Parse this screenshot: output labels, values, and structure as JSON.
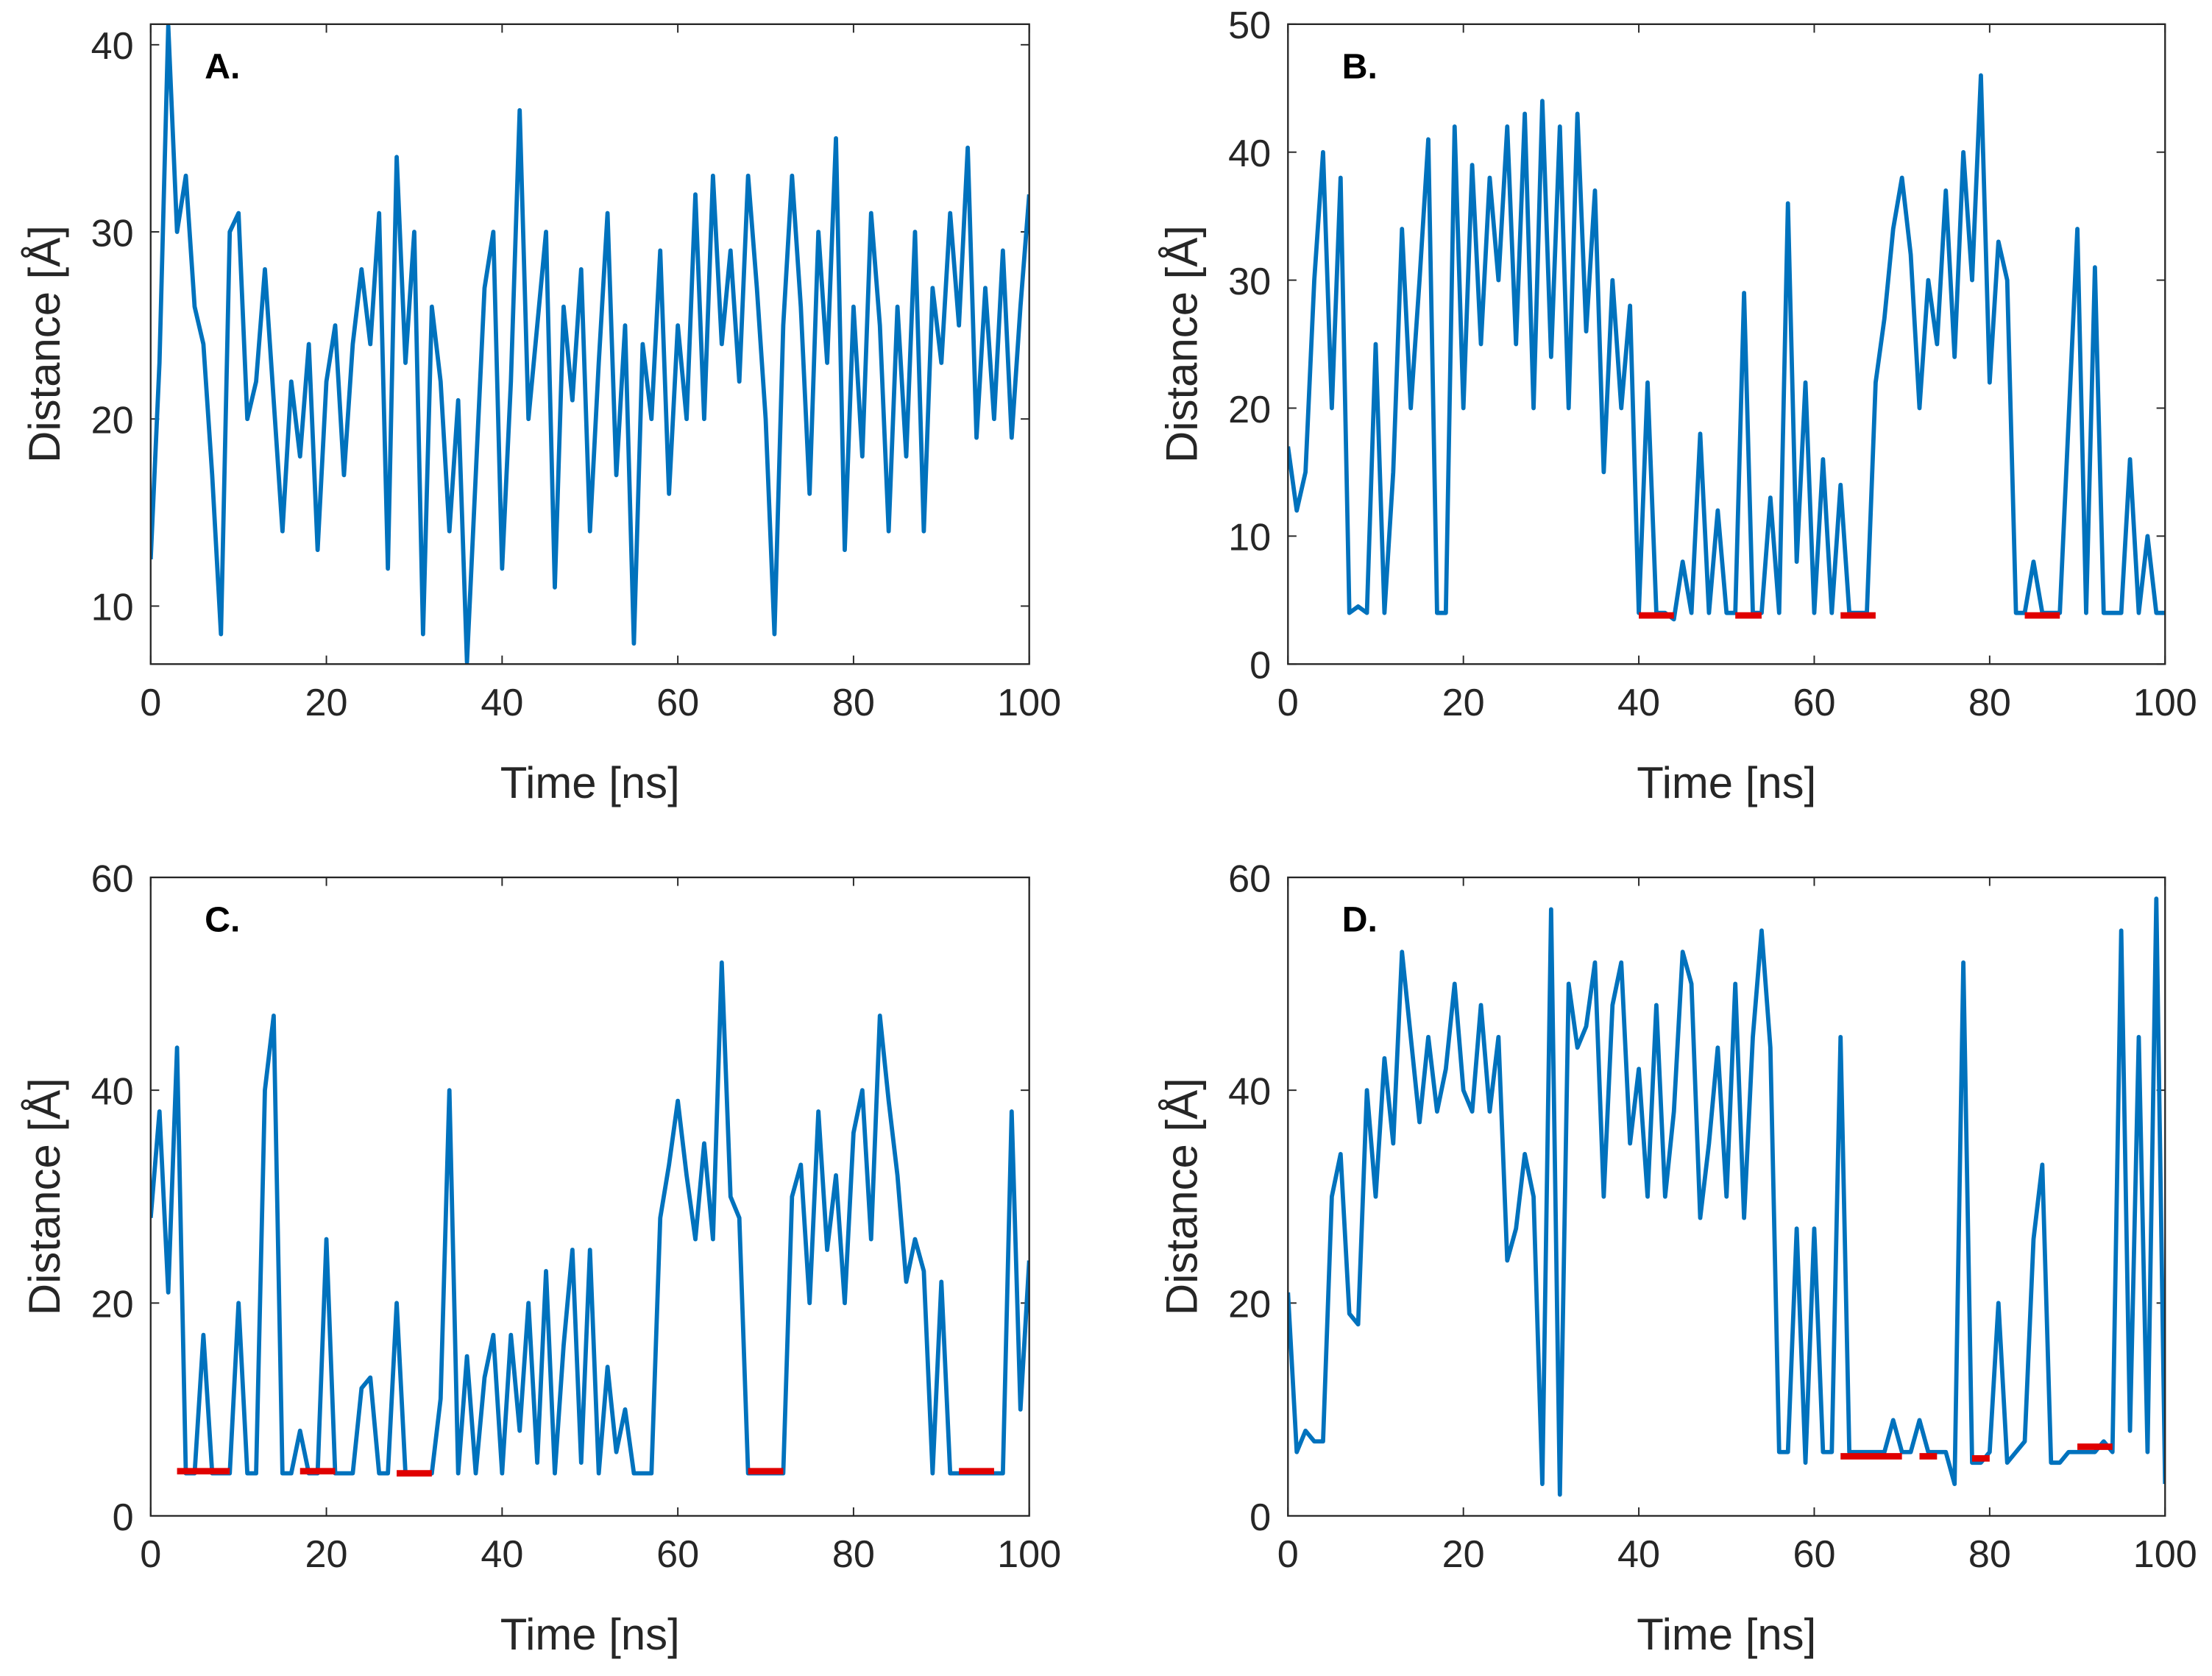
{
  "chart_data": [
    {
      "type": "line",
      "annotation": "A.",
      "xlabel": "Time [ns]",
      "ylabel": "Distance [Å]",
      "xlim": [
        0,
        100
      ],
      "xticks": [
        0,
        20,
        40,
        60,
        80,
        100
      ],
      "ylim": [
        6.9,
        41.1
      ],
      "yticks": [
        10,
        20,
        30,
        40
      ],
      "x": [
        0,
        1,
        2,
        3,
        4,
        5,
        6,
        7,
        8,
        9,
        10,
        11,
        12,
        13,
        14,
        15,
        16,
        17,
        18,
        19,
        20,
        21,
        22,
        23,
        24,
        25,
        26,
        27,
        28,
        29,
        30,
        31,
        32,
        33,
        34,
        35,
        36,
        37,
        38,
        39,
        40,
        41,
        42,
        43,
        44,
        45,
        46,
        47,
        48,
        49,
        50,
        51,
        52,
        53,
        54,
        55,
        56,
        57,
        58,
        59,
        60,
        61,
        62,
        63,
        64,
        65,
        66,
        67,
        68,
        69,
        70,
        71,
        72,
        73,
        74,
        75,
        76,
        77,
        78,
        79,
        80,
        81,
        82,
        83,
        84,
        85,
        86,
        87,
        88,
        89,
        90,
        91,
        92,
        93,
        94,
        95,
        96,
        97,
        98,
        99,
        100
      ],
      "series": [
        {
          "color": "#0072bd",
          "values": [
            12.5,
            23,
            41,
            30,
            33,
            26,
            24,
            17,
            8.5,
            30,
            31,
            20,
            22,
            28,
            21,
            14,
            22,
            18,
            24,
            13,
            22,
            25,
            17,
            24,
            28,
            24,
            31,
            12,
            34,
            23,
            30,
            8.5,
            26,
            22,
            14,
            21,
            7,
            17,
            27,
            30,
            12,
            22,
            36.5,
            20,
            25,
            30,
            11,
            26,
            21,
            28,
            14,
            23,
            31,
            17,
            25,
            8,
            24,
            20,
            29,
            16,
            25,
            20,
            32,
            20,
            33,
            24,
            29,
            22,
            33,
            27,
            20,
            8.5,
            25,
            33,
            26,
            16,
            30,
            23,
            35,
            13,
            26,
            18,
            31,
            25,
            14,
            26,
            18,
            30,
            14,
            27,
            23,
            31,
            25,
            34.5,
            19,
            27,
            20,
            29,
            19,
            26,
            32
          ]
        }
      ]
    },
    {
      "type": "line",
      "annotation": "B.",
      "xlabel": "Time [ns]",
      "ylabel": "Distance [Å]",
      "xlim": [
        0,
        100
      ],
      "xticks": [
        0,
        20,
        40,
        60,
        80,
        100
      ],
      "ylim": [
        0,
        50
      ],
      "yticks": [
        0,
        10,
        20,
        30,
        40,
        50
      ],
      "x": [
        0,
        1,
        2,
        3,
        4,
        5,
        6,
        7,
        8,
        9,
        10,
        11,
        12,
        13,
        14,
        15,
        16,
        17,
        18,
        19,
        20,
        21,
        22,
        23,
        24,
        25,
        26,
        27,
        28,
        29,
        30,
        31,
        32,
        33,
        34,
        35,
        36,
        37,
        38,
        39,
        40,
        41,
        42,
        43,
        44,
        45,
        46,
        47,
        48,
        49,
        50,
        51,
        52,
        53,
        54,
        55,
        56,
        57,
        58,
        59,
        60,
        61,
        62,
        63,
        64,
        65,
        66,
        67,
        68,
        69,
        70,
        71,
        72,
        73,
        74,
        75,
        76,
        77,
        78,
        79,
        80,
        81,
        82,
        83,
        84,
        85,
        86,
        87,
        88,
        89,
        90,
        91,
        92,
        93,
        94,
        95,
        96,
        97,
        98,
        99,
        100
      ],
      "series": [
        {
          "color": "#0072bd",
          "values": [
            17,
            12,
            15,
            30,
            40,
            20,
            38,
            4,
            4.5,
            4,
            25,
            4,
            15,
            34,
            20,
            30,
            41,
            4,
            4,
            42,
            20,
            39,
            25,
            38,
            30,
            42,
            25,
            43,
            20,
            44,
            24,
            42,
            20,
            43,
            26,
            37,
            15,
            30,
            20,
            28,
            4,
            22,
            4,
            4,
            3.5,
            8,
            4,
            18,
            4,
            12,
            4,
            4,
            29,
            4,
            4,
            13,
            4,
            36,
            8,
            22,
            4,
            16,
            4,
            14,
            4,
            4,
            4,
            22,
            27,
            34,
            38,
            32,
            20,
            30,
            25,
            37,
            24,
            40,
            30,
            46,
            22,
            33,
            30,
            4,
            4,
            8,
            4,
            4,
            4,
            19,
            34,
            4,
            31,
            4,
            4,
            4,
            16,
            4,
            10,
            4,
            4
          ]
        },
        {
          "color": "#e00000",
          "x": [
            40,
            44,
            47,
            51,
            54,
            58,
            63,
            67,
            75,
            84,
            88
          ],
          "values": [
            3.8,
            3.8,
            null,
            3.8,
            3.8,
            null,
            3.8,
            3.8,
            null,
            3.8,
            3.8
          ]
        }
      ]
    },
    {
      "type": "line",
      "annotation": "C.",
      "xlabel": "Time [ns]",
      "ylabel": "Distance [Å]",
      "xlim": [
        0,
        100
      ],
      "xticks": [
        0,
        20,
        40,
        60,
        80,
        100
      ],
      "ylim": [
        0,
        60
      ],
      "yticks": [
        0,
        20,
        40,
        60
      ],
      "x": [
        0,
        1,
        2,
        3,
        4,
        5,
        6,
        7,
        8,
        9,
        10,
        11,
        12,
        13,
        14,
        15,
        16,
        17,
        18,
        19,
        20,
        21,
        22,
        23,
        24,
        25,
        26,
        27,
        28,
        29,
        30,
        31,
        32,
        33,
        34,
        35,
        36,
        37,
        38,
        39,
        40,
        41,
        42,
        43,
        44,
        45,
        46,
        47,
        48,
        49,
        50,
        51,
        52,
        53,
        54,
        55,
        56,
        57,
        58,
        59,
        60,
        61,
        62,
        63,
        64,
        65,
        66,
        67,
        68,
        69,
        70,
        71,
        72,
        73,
        74,
        75,
        76,
        77,
        78,
        79,
        80,
        81,
        82,
        83,
        84,
        85,
        86,
        87,
        88,
        89,
        90,
        91,
        92,
        93,
        94,
        95,
        96,
        97,
        98,
        99,
        100
      ],
      "series": [
        {
          "color": "#0072bd",
          "values": [
            28,
            38,
            21,
            44,
            4,
            4,
            17,
            4,
            4,
            4,
            20,
            4,
            4,
            40,
            47,
            4,
            4,
            8,
            4,
            4,
            26,
            4,
            4,
            4,
            12,
            13,
            4,
            4,
            20,
            4,
            4,
            4,
            4,
            11,
            40,
            4,
            15,
            4,
            13,
            17,
            4,
            17,
            8,
            20,
            5,
            23,
            4,
            16,
            25,
            5,
            25,
            4,
            14,
            6,
            10,
            4,
            4,
            4,
            28,
            33,
            39,
            32,
            26,
            35,
            26,
            52,
            30,
            28,
            4,
            4,
            4,
            4,
            4,
            30,
            33,
            20,
            38,
            25,
            32,
            20,
            36,
            40,
            26,
            47,
            39,
            32,
            22,
            26,
            23,
            4,
            22,
            4,
            4,
            4,
            4,
            4,
            4,
            4,
            38,
            10,
            24
          ]
        },
        {
          "color": "#e00000",
          "x": [
            3,
            9,
            13,
            17,
            21,
            25,
            28,
            32,
            50,
            68,
            72,
            82,
            92,
            96
          ],
          "values": [
            4.2,
            4.2,
            null,
            4.2,
            4.2,
            null,
            4,
            4,
            null,
            4.2,
            4.2,
            null,
            4.2,
            4.2
          ]
        }
      ]
    },
    {
      "type": "line",
      "annotation": "D.",
      "xlabel": "Time [ns]",
      "ylabel": "Distance [Å]",
      "xlim": [
        0,
        100
      ],
      "xticks": [
        0,
        20,
        40,
        60,
        80,
        100
      ],
      "ylim": [
        0,
        60
      ],
      "yticks": [
        0,
        20,
        40,
        60
      ],
      "x": [
        0,
        1,
        2,
        3,
        4,
        5,
        6,
        7,
        8,
        9,
        10,
        11,
        12,
        13,
        14,
        15,
        16,
        17,
        18,
        19,
        20,
        21,
        22,
        23,
        24,
        25,
        26,
        27,
        28,
        29,
        30,
        31,
        32,
        33,
        34,
        35,
        36,
        37,
        38,
        39,
        40,
        41,
        42,
        43,
        44,
        45,
        46,
        47,
        48,
        49,
        50,
        51,
        52,
        53,
        54,
        55,
        56,
        57,
        58,
        59,
        60,
        61,
        62,
        63,
        64,
        65,
        66,
        67,
        68,
        69,
        70,
        71,
        72,
        73,
        74,
        75,
        76,
        77,
        78,
        79,
        80,
        81,
        82,
        83,
        84,
        85,
        86,
        87,
        88,
        89,
        90,
        91,
        92,
        93,
        94,
        95,
        96,
        97,
        98,
        99,
        100
      ],
      "series": [
        {
          "color": "#0072bd",
          "values": [
            21,
            6,
            8,
            7,
            7,
            30,
            34,
            19,
            18,
            40,
            30,
            43,
            35,
            53,
            45,
            37,
            45,
            38,
            42,
            50,
            40,
            38,
            48,
            38,
            45,
            24,
            27,
            34,
            30,
            3,
            57,
            2,
            50,
            44,
            46,
            52,
            30,
            48,
            52,
            35,
            42,
            30,
            48,
            30,
            38,
            53,
            50,
            28,
            35,
            44,
            30,
            50,
            28,
            45,
            55,
            44,
            6,
            6,
            27,
            5,
            27,
            6,
            6,
            45,
            6,
            6,
            6,
            6,
            6,
            9,
            6,
            6,
            9,
            6,
            6,
            6,
            3,
            52,
            5,
            5,
            6,
            20,
            5,
            6,
            7,
            26,
            33,
            5,
            5,
            6,
            6,
            6,
            6,
            7,
            6,
            55,
            8,
            45,
            6,
            58,
            3
          ]
        },
        {
          "color": "#e00000",
          "x": [
            63,
            70,
            71,
            72,
            74,
            76,
            78,
            80,
            85,
            90,
            94
          ],
          "values": [
            5.6,
            5.6,
            null,
            5.6,
            5.6,
            null,
            5.4,
            5.4,
            null,
            6.5,
            6.5
          ]
        }
      ]
    }
  ]
}
